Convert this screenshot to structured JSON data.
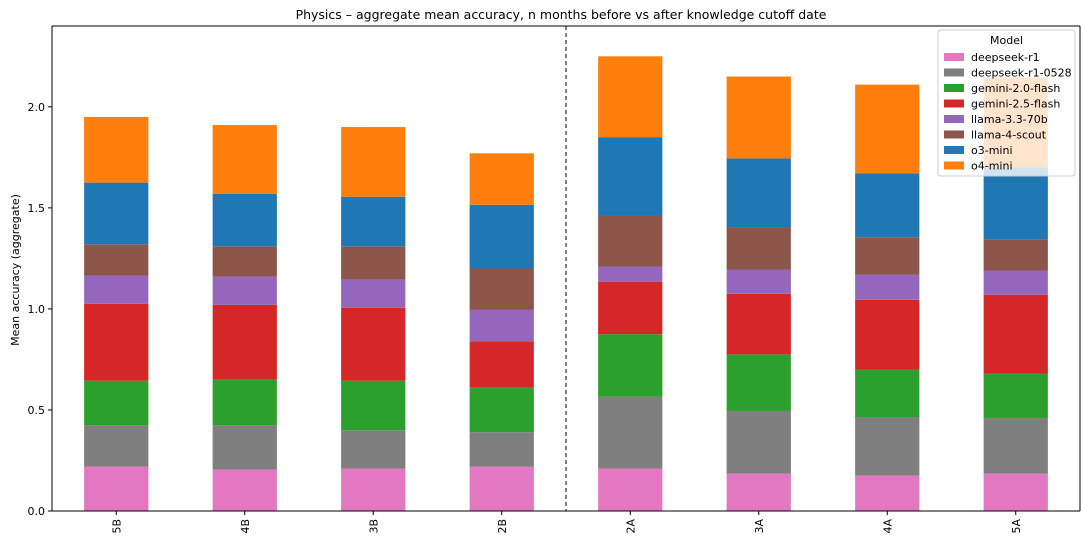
{
  "chart_data": {
    "type": "bar",
    "stacked": true,
    "title": "Physics – aggregate mean accuracy, n months before vs after knowledge cutoff date",
    "xlabel": "",
    "ylabel": "Mean accuracy (aggregate)",
    "ylim": [
      0,
      2.4
    ],
    "yticks": [
      "0.0",
      "0.5",
      "1.0",
      "1.5",
      "2.0"
    ],
    "grid": false,
    "cutoff_line_after_index": 3,
    "categories": [
      "5B",
      "4B",
      "3B",
      "2B",
      "2A",
      "3A",
      "4A",
      "5A"
    ],
    "legend": {
      "title": "Model",
      "placement": "top-right"
    },
    "series": [
      {
        "name": "deepseek-r1",
        "color": "#e377c2",
        "values": [
          0.22,
          0.205,
          0.21,
          0.22,
          0.21,
          0.185,
          0.175,
          0.185
        ]
      },
      {
        "name": "deepseek-r1-0528",
        "color": "#7f7f7f",
        "values": [
          0.205,
          0.22,
          0.19,
          0.17,
          0.355,
          0.31,
          0.29,
          0.275
        ]
      },
      {
        "name": "gemini-2.0-flash",
        "color": "#2ca02c",
        "values": [
          0.22,
          0.225,
          0.245,
          0.22,
          0.31,
          0.28,
          0.235,
          0.22
        ]
      },
      {
        "name": "gemini-2.5-flash",
        "color": "#d62728",
        "values": [
          0.38,
          0.37,
          0.36,
          0.23,
          0.26,
          0.3,
          0.345,
          0.39
        ]
      },
      {
        "name": "llama-3.3-70b",
        "color": "#9467bd",
        "values": [
          0.14,
          0.14,
          0.14,
          0.155,
          0.075,
          0.12,
          0.125,
          0.12
        ]
      },
      {
        "name": "llama-4-scout",
        "color": "#8c564b",
        "values": [
          0.155,
          0.15,
          0.165,
          0.205,
          0.25,
          0.21,
          0.185,
          0.155
        ]
      },
      {
        "name": "o3-mini",
        "color": "#1f77b4",
        "values": [
          0.305,
          0.26,
          0.245,
          0.315,
          0.39,
          0.34,
          0.315,
          0.355
        ]
      },
      {
        "name": "o4-mini",
        "color": "#ff7f0e",
        "values": [
          0.325,
          0.34,
          0.345,
          0.255,
          0.4,
          0.405,
          0.44,
          0.445
        ]
      }
    ]
  }
}
